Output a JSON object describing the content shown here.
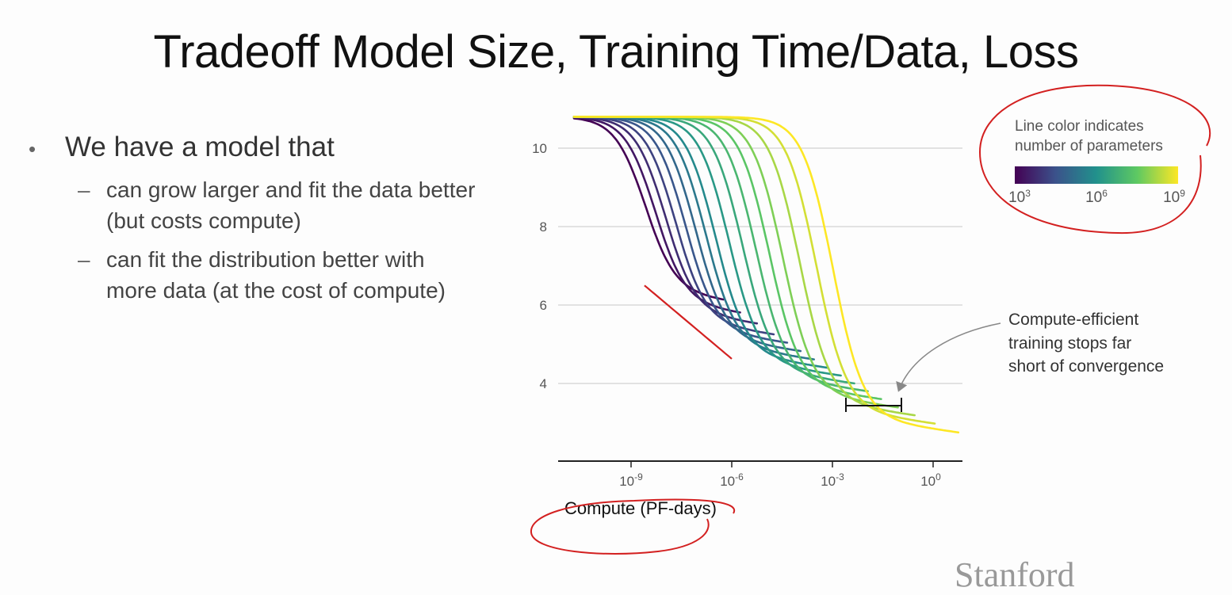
{
  "slide": {
    "title": "Tradeoff Model Size, Training Time/Data, Loss",
    "bullet": "We have a model that",
    "sub_bullets": [
      "can grow larger and fit the data better (but costs compute)",
      "can fit the distribution better with more data (at the cost of compute)"
    ],
    "dash": "–",
    "dot": "•",
    "logo": "Stanford"
  },
  "chart_data": {
    "type": "line",
    "xlabel": "Compute (PF-days)",
    "ylabel": "",
    "xscale": "log",
    "xlim": [
      1e-11,
      100.0
    ],
    "ylim": [
      2,
      10.8
    ],
    "yticks": [
      4,
      6,
      8,
      10
    ],
    "ytick_labels": [
      "10",
      "8",
      "6",
      "4"
    ],
    "xtick_labels": [
      {
        "base": "10",
        "exp": "-9"
      },
      {
        "base": "10",
        "exp": "-6"
      },
      {
        "base": "10",
        "exp": "-3"
      },
      {
        "base": "10",
        "exp": "0"
      }
    ],
    "grid": true,
    "legend": {
      "title_lines": [
        "Line color indicates",
        "number of parameters"
      ],
      "labels": [
        {
          "base": "10",
          "exp": "3"
        },
        {
          "base": "10",
          "exp": "6"
        },
        {
          "base": "10",
          "exp": "9"
        }
      ],
      "colors": [
        "#440154",
        "#3b528b",
        "#21918c",
        "#5ec962",
        "#fde725"
      ],
      "placement": "top-right"
    },
    "series": [
      {
        "params_log10": 3.0,
        "transition_log10x": -8.6,
        "plateau": 6.4,
        "end_log10x": -6.2
      },
      {
        "params_log10": 3.4,
        "transition_log10x": -8.3,
        "plateau": 6.1,
        "end_log10x": -5.7
      },
      {
        "params_log10": 3.8,
        "transition_log10x": -8.0,
        "plateau": 5.85,
        "end_log10x": -5.2
      },
      {
        "params_log10": 4.2,
        "transition_log10x": -7.7,
        "plateau": 5.6,
        "end_log10x": -4.7
      },
      {
        "params_log10": 4.6,
        "transition_log10x": -7.4,
        "plateau": 5.4,
        "end_log10x": -4.3
      },
      {
        "params_log10": 5.0,
        "transition_log10x": -7.1,
        "plateau": 5.2,
        "end_log10x": -3.9
      },
      {
        "params_log10": 5.4,
        "transition_log10x": -6.8,
        "plateau": 5.0,
        "end_log10x": -3.5
      },
      {
        "params_log10": 5.8,
        "transition_log10x": -6.5,
        "plateau": 4.8,
        "end_log10x": -3.1
      },
      {
        "params_log10": 6.2,
        "transition_log10x": -6.1,
        "plateau": 4.6,
        "end_log10x": -2.7
      },
      {
        "params_log10": 6.6,
        "transition_log10x": -5.7,
        "plateau": 4.4,
        "end_log10x": -2.3
      },
      {
        "params_log10": 7.0,
        "transition_log10x": -5.3,
        "plateau": 4.2,
        "end_log10x": -1.9
      },
      {
        "params_log10": 7.4,
        "transition_log10x": -4.9,
        "plateau": 4.0,
        "end_log10x": -1.5
      },
      {
        "params_log10": 7.8,
        "transition_log10x": -4.5,
        "plateau": 3.8,
        "end_log10x": -1.0
      },
      {
        "params_log10": 8.2,
        "transition_log10x": -4.0,
        "plateau": 3.6,
        "end_log10x": -0.5
      },
      {
        "params_log10": 8.6,
        "transition_log10x": -3.5,
        "plateau": 3.4,
        "end_log10x": 0.1
      },
      {
        "params_log10": 9.0,
        "transition_log10x": -3.0,
        "plateau": 3.2,
        "end_log10x": 0.8
      }
    ],
    "frontier_x": [
      -8.6,
      -7.0,
      -6.0,
      -5.0,
      -4.0
    ],
    "annotation": {
      "lines": [
        "Compute-efficient",
        "training stops far",
        "short of convergence"
      ]
    }
  }
}
